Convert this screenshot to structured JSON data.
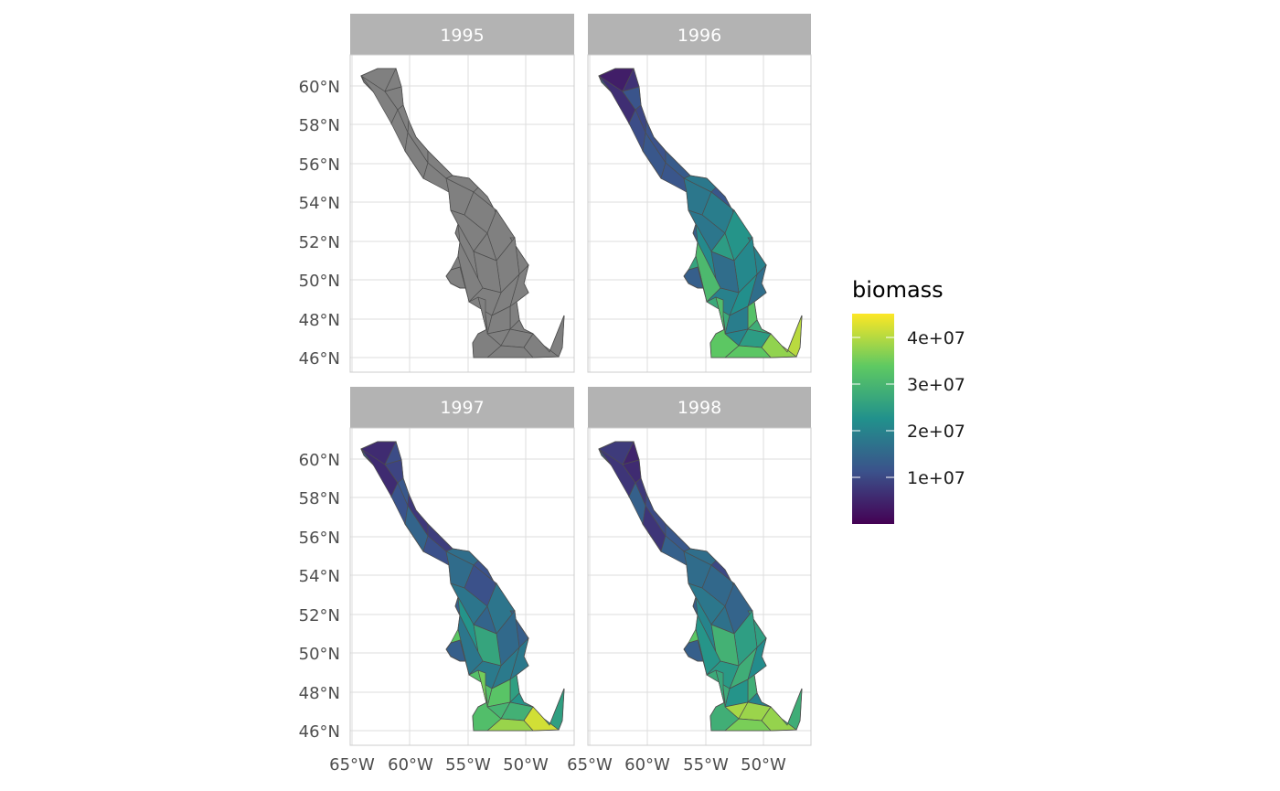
{
  "map": {
    "facets": [
      {
        "label": "1995",
        "fill_mode": "none"
      },
      {
        "label": "1996",
        "fill_mode": "viridis"
      },
      {
        "label": "1997",
        "fill_mode": "viridis"
      },
      {
        "label": "1998",
        "fill_mode": "viridis"
      }
    ],
    "y_axis_labels": [
      "46°N",
      "48°N",
      "50°N",
      "52°N",
      "54°N",
      "56°N",
      "58°N",
      "60°N"
    ],
    "x_axis_labels": [
      "65°W",
      "60°W",
      "55°W",
      "50°W"
    ],
    "no_data_fill": "#808080",
    "polygon_stroke": "#4d4d4d",
    "strip_color": "#b3b3b3",
    "grid_color": "#dedede"
  },
  "legend": {
    "title": "biomass",
    "labels": [
      "4e+07",
      "3e+07",
      "2e+07",
      "1e+07"
    ],
    "colors": [
      "#440154",
      "#3b528b",
      "#21918c",
      "#5ec962",
      "#fde725"
    ]
  }
}
